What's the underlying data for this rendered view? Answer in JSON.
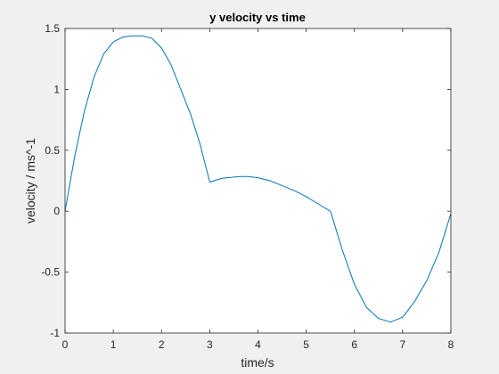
{
  "chart_data": {
    "type": "line",
    "title": "y velocity vs time",
    "xlabel": "time/s",
    "ylabel": "velocity / ms^-1",
    "xlim": [
      0,
      8
    ],
    "ylim": [
      -1,
      1.5
    ],
    "xticks": [
      0,
      1,
      2,
      3,
      4,
      5,
      6,
      7,
      8
    ],
    "yticks": [
      -1,
      -0.5,
      0,
      0.5,
      1,
      1.5
    ],
    "xtick_labels": [
      "0",
      "1",
      "2",
      "3",
      "4",
      "5",
      "6",
      "7",
      "8"
    ],
    "ytick_labels": [
      "-1",
      "-0.5",
      "0",
      "0.5",
      "1",
      "1.5"
    ],
    "grid": false,
    "legend": "none",
    "series": [
      {
        "color": "#0072bd",
        "x": [
          0,
          0.2,
          0.4,
          0.6,
          0.8,
          1.0,
          1.2,
          1.4,
          1.6,
          1.8,
          2.0,
          2.2,
          2.4,
          2.6,
          2.8,
          3.0,
          3.01,
          3.25,
          3.5,
          3.65,
          3.8,
          4.0,
          4.25,
          4.5,
          4.75,
          5.0,
          5.25,
          5.5,
          5.52,
          5.75,
          6.0,
          6.25,
          6.5,
          6.75,
          7.0,
          7.25,
          7.5,
          7.75,
          8.0
        ],
        "y": [
          0.0,
          0.45,
          0.82,
          1.1,
          1.29,
          1.39,
          1.43,
          1.44,
          1.44,
          1.42,
          1.34,
          1.2,
          1.0,
          0.8,
          0.55,
          0.24,
          0.24,
          0.27,
          0.28,
          0.285,
          0.285,
          0.275,
          0.25,
          0.21,
          0.17,
          0.12,
          0.06,
          0.0,
          -0.02,
          -0.32,
          -0.6,
          -0.79,
          -0.88,
          -0.91,
          -0.87,
          -0.74,
          -0.57,
          -0.34,
          -0.02
        ]
      }
    ]
  }
}
